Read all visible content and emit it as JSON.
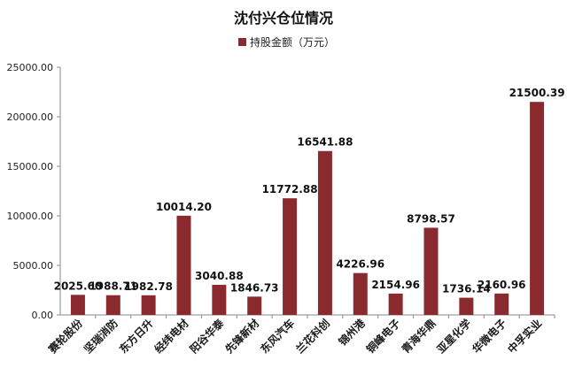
{
  "chart_data": {
    "type": "bar",
    "title": "沈付兴仓位情况",
    "categories": [
      "赛轮股份",
      "坚瑞消防",
      "东方日升",
      "经纬电材",
      "阳谷华泰",
      "先锋新材",
      "东风汽车",
      "兰花科创",
      "锦州港",
      "铜峰电子",
      "青海华鼎",
      "亚星化学",
      "华微电子",
      "中孚实业"
    ],
    "series": [
      {
        "name": "持股金额（万元）",
        "values": [
          2025.6,
          1988.71,
          1982.78,
          10014.2,
          3040.88,
          1846.73,
          11772.88,
          16541.88,
          4226.96,
          2154.96,
          8798.57,
          1736.14,
          2160.96,
          21500.39
        ]
      }
    ],
    "value_labels": [
      "2025.60",
      "1988.71",
      "1982.78",
      "10014.20",
      "3040.88",
      "1846.73",
      "11772.88",
      "16541.88",
      "4226.96",
      "2154.96",
      "8798.57",
      "1736.14",
      "2160.96",
      "21500.39"
    ],
    "y_ticks": [
      "0.00",
      "5000.00",
      "10000.00",
      "15000.00",
      "20000.00",
      "25000.00"
    ],
    "ylim": [
      0,
      25000
    ],
    "legend_position": "top-center",
    "grid": false,
    "bar_color": "#8B2A2E"
  }
}
